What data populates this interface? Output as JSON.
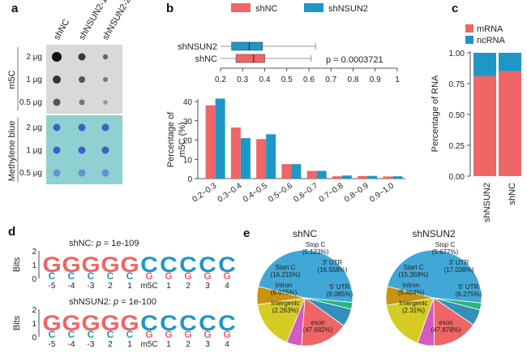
{
  "colors": {
    "shNC": "#f06565",
    "shNSUN2": "#1f96c8",
    "mRNA": "#f06565",
    "ncRNA": "#1f96c8",
    "exon": "#40a7d6",
    "start_c": "#f06565",
    "three_utr": "#d4cc23",
    "five_utr": "#c79412",
    "stop_c": "#d45cc0",
    "intron": "#3290bb",
    "intergenic": "#27b77c",
    "logo_g": "#f06565",
    "logo_c": "#1f96c8",
    "dot_bg": "#d4d4d4",
    "blue_bg": "#8fd1d0"
  },
  "panel_a": {
    "letter": "a",
    "columns": [
      "shNC",
      "shNSUN2-1",
      "shNSUN2-2"
    ],
    "m5c_label": "m5C",
    "mb_label": "Methylene blue",
    "rows": [
      "2 μg",
      "1 μg",
      "0.5 μg"
    ]
  },
  "panel_b": {
    "letter": "b",
    "legend": [
      "shNC",
      "shNSUN2"
    ],
    "box_labels": [
      "shNSUN2",
      "shNC"
    ],
    "pvalue_text": "p = 0.0003721",
    "box_axis_ticks": [
      "0.2",
      "0.3",
      "0.4",
      "0.5",
      "0.6",
      "0.7",
      "0.8",
      "0.9",
      "1"
    ]
  },
  "chart_data": [
    {
      "type": "box",
      "x_range": [
        0.2,
        1
      ],
      "series": [
        {
          "name": "shNSUN2",
          "whisker_low": 0.2,
          "q1": 0.25,
          "median": 0.33,
          "q3": 0.39,
          "whisker_high": 0.63
        },
        {
          "name": "shNC",
          "whisker_low": 0.2,
          "q1": 0.27,
          "median": 0.35,
          "q3": 0.4,
          "whisker_high": 0.61
        }
      ],
      "pvalue": "p = 0.0003721"
    },
    {
      "type": "bar",
      "ylabel_lines": [
        "Percentage of",
        "m5C (%)"
      ],
      "ylim": [
        0,
        40
      ],
      "yticks": [
        0,
        10,
        20,
        30,
        40
      ],
      "categories": [
        "0.2~0.3",
        "0.3~0.4",
        "0.4~0.5",
        "0.5~0.6",
        "0.6~0.7",
        "0.7~0.8",
        "0.8~0.9",
        "0.9~1.0"
      ],
      "series": [
        {
          "name": "shNC",
          "values": [
            38,
            26.5,
            20.5,
            7.5,
            4,
            1.2,
            1.3,
            1.1
          ]
        },
        {
          "name": "shNSUN2",
          "values": [
            41.5,
            21,
            23,
            7.5,
            4,
            1.6,
            1.4,
            1.2
          ]
        }
      ]
    },
    {
      "type": "stacked_bar",
      "ylabel": "Percentage of RNA",
      "legend": [
        "mRNA",
        "ncRNA"
      ],
      "yticks": [
        "0.00",
        "0.25",
        "0.50",
        "0.75",
        "1.00"
      ],
      "categories": [
        "shNSUN2",
        "shNC"
      ],
      "series": [
        {
          "name": "mRNA",
          "values": [
            0.81,
            0.85
          ]
        },
        {
          "name": "ncRNA",
          "values": [
            0.19,
            0.15
          ]
        }
      ]
    },
    {
      "type": "pie",
      "title": "shNC",
      "slices": [
        {
          "key": "exon",
          "label": "exon",
          "pct_text": "(47.682%)",
          "value": 47.682
        },
        {
          "key": "intergenic",
          "label": "Intergenic",
          "pct_text": "(2.263%)",
          "value": 2.263
        },
        {
          "key": "intron",
          "label": "Intron",
          "pct_text": "(6.075%)",
          "value": 6.075
        },
        {
          "key": "start_c",
          "label": "Start C",
          "pct_text": "(16.215%)",
          "value": 16.215
        },
        {
          "key": "stop_c",
          "label": "Stop C",
          "pct_text": "(5.123%)",
          "value": 5.123
        },
        {
          "key": "three_utr",
          "label": "3' UTR",
          "pct_text": "(16.558%)",
          "value": 16.558
        },
        {
          "key": "five_utr",
          "label": "5' UTR",
          "pct_text": "(6.085%)",
          "value": 6.085
        }
      ]
    },
    {
      "type": "pie",
      "title": "shNSUN2",
      "slices": [
        {
          "key": "exon",
          "label": "exon",
          "pct_text": "(47.878%)",
          "value": 47.878
        },
        {
          "key": "intergenic",
          "label": "Intergenic",
          "pct_text": "(2.31%)",
          "value": 2.31
        },
        {
          "key": "intron",
          "label": "Intron",
          "pct_text": "(5.464%)",
          "value": 5.464
        },
        {
          "key": "start_c",
          "label": "Start C",
          "pct_text": "(15.359%)",
          "value": 15.359
        },
        {
          "key": "stop_c",
          "label": "Stop C",
          "pct_text": "(5.677%)",
          "value": 5.677
        },
        {
          "key": "three_utr",
          "label": "3' UTR",
          "pct_text": "(17.038%)",
          "value": 17.038
        },
        {
          "key": "five_utr",
          "label": "5' UTR",
          "pct_text": "(6.275%)",
          "value": 6.275
        }
      ]
    }
  ],
  "panel_c": {
    "letter": "c"
  },
  "panel_d": {
    "letter": "d",
    "logo1_title": "shNC: ",
    "logo1_p": "p",
    "logo1_value": " = 1e-109",
    "logo2_title": "shNSUN2: ",
    "logo2_p": "p",
    "logo2_value": " = 1e-100",
    "ylabel": "Bits",
    "yticks": [
      "2",
      "1",
      "0"
    ],
    "positions": [
      "-5",
      "-4",
      "-3",
      "2",
      "1",
      "m5C",
      "1",
      "2",
      "3",
      "4"
    ],
    "top_letters": [
      "G",
      "G",
      "G",
      "G",
      "G",
      "C",
      "C",
      "C",
      "C",
      "C"
    ],
    "bottom_letters": [
      "C",
      "C",
      "C",
      "C",
      "C",
      "G",
      "G",
      "G",
      "G",
      "G"
    ]
  },
  "panel_e": {
    "letter": "e"
  }
}
